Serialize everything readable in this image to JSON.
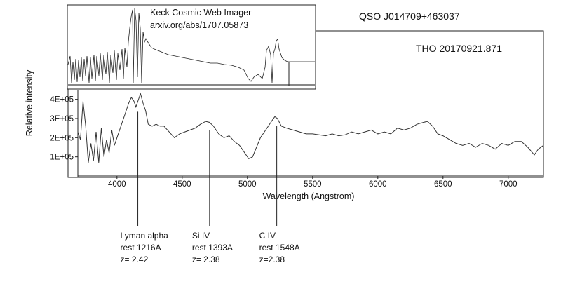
{
  "object_label": "QSO  J014709+463037",
  "observation_label": "THO  20170921.871",
  "inset": {
    "title": "Keck Cosmic Web Imager",
    "reference": "arxiv.org/abs/1707.05873"
  },
  "annotations": [
    {
      "line": "Lyman alpha",
      "rest": "rest 1216A",
      "z": "z= 2.42",
      "wavelength": 4160
    },
    {
      "line": "Si IV",
      "rest": "rest 1393A",
      "z": "z= 2.38",
      "wavelength": 4710
    },
    {
      "line": "C IV",
      "rest": "rest 1548A",
      "z": "z=2.38",
      "wavelength": 5225
    }
  ],
  "chart_data": {
    "type": "line",
    "title": "",
    "xlabel": "Wavelength (Angstrom)",
    "ylabel": "Relative intensity",
    "xlim": [
      3700,
      7270
    ],
    "ylim": [
      0,
      450000
    ],
    "x_ticks": [
      4000,
      4500,
      5000,
      5500,
      6000,
      6500,
      7000
    ],
    "x_tick_labels": [
      "4000",
      "4500",
      "5000",
      "5500",
      "6000",
      "6500",
      "7000"
    ],
    "y_ticks": [
      100000,
      200000,
      300000,
      400000
    ],
    "y_tick_labels": [
      "1E+05",
      "2E+05",
      "3E+05",
      "4E+05"
    ],
    "grid": false,
    "series": [
      {
        "x": [
          3700,
          3720,
          3740,
          3760,
          3780,
          3800,
          3820,
          3840,
          3860,
          3880,
          3900,
          3920,
          3940,
          3960,
          3980,
          4000,
          4030,
          4060,
          4090,
          4110,
          4130,
          4145,
          4160,
          4180,
          4200,
          4220,
          4240,
          4270,
          4300,
          4330,
          4360,
          4400,
          4440,
          4480,
          4520,
          4560,
          4600,
          4640,
          4680,
          4710,
          4740,
          4780,
          4820,
          4860,
          4900,
          4940,
          4980,
          5010,
          5040,
          5070,
          5100,
          5130,
          5160,
          5190,
          5210,
          5230,
          5260,
          5300,
          5350,
          5400,
          5450,
          5500,
          5550,
          5600,
          5650,
          5700,
          5750,
          5800,
          5850,
          5900,
          5950,
          6000,
          6050,
          6100,
          6150,
          6200,
          6250,
          6300,
          6350,
          6380,
          6420,
          6460,
          6500,
          6550,
          6600,
          6650,
          6700,
          6750,
          6800,
          6850,
          6900,
          6950,
          7000,
          7050,
          7100,
          7150,
          7200,
          7230,
          7270
        ],
        "y": [
          230000,
          190000,
          390000,
          260000,
          70000,
          170000,
          80000,
          230000,
          70000,
          250000,
          100000,
          190000,
          120000,
          240000,
          160000,
          200000,
          260000,
          320000,
          380000,
          410000,
          390000,
          360000,
          390000,
          430000,
          380000,
          340000,
          270000,
          260000,
          270000,
          260000,
          260000,
          230000,
          200000,
          220000,
          230000,
          240000,
          250000,
          270000,
          285000,
          280000,
          260000,
          220000,
          200000,
          210000,
          180000,
          160000,
          120000,
          90000,
          100000,
          150000,
          200000,
          230000,
          260000,
          290000,
          310000,
          300000,
          260000,
          250000,
          240000,
          230000,
          220000,
          220000,
          215000,
          210000,
          220000,
          210000,
          215000,
          230000,
          220000,
          230000,
          240000,
          220000,
          230000,
          220000,
          250000,
          240000,
          250000,
          270000,
          280000,
          285000,
          260000,
          220000,
          210000,
          190000,
          170000,
          160000,
          170000,
          150000,
          170000,
          160000,
          140000,
          170000,
          160000,
          180000,
          180000,
          150000,
          110000,
          140000,
          160000
        ]
      }
    ]
  }
}
